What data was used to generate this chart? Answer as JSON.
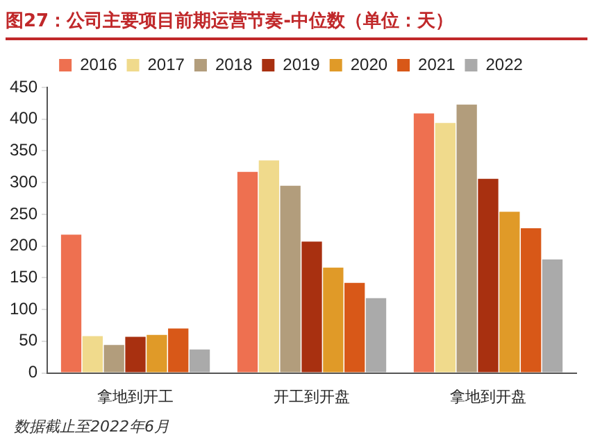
{
  "chart_data": {
    "type": "bar",
    "title": "图27：公司主要项目前期运营节奏-中位数（单位：天）",
    "categories": [
      "拿地到开工",
      "开工到开盘",
      "拿地到开盘"
    ],
    "series": [
      {
        "name": "2016",
        "color": "#ee7050",
        "values": [
          218,
          317,
          409
        ]
      },
      {
        "name": "2017",
        "color": "#f0da8c",
        "values": [
          58,
          335,
          394
        ]
      },
      {
        "name": "2018",
        "color": "#b29d7c",
        "values": [
          44,
          295,
          423
        ]
      },
      {
        "name": "2019",
        "color": "#a83010",
        "values": [
          57,
          207,
          306
        ]
      },
      {
        "name": "2020",
        "color": "#e09a28",
        "values": [
          60,
          166,
          254
        ]
      },
      {
        "name": "2021",
        "color": "#d85818",
        "values": [
          70,
          142,
          228
        ]
      },
      {
        "name": "2022",
        "color": "#aaaaaa",
        "values": [
          37,
          118,
          179
        ]
      }
    ],
    "ylim": [
      0,
      450
    ],
    "yticks": [
      0,
      50,
      100,
      150,
      200,
      250,
      300,
      350,
      400,
      450
    ],
    "grid": false,
    "legend": "top",
    "annotations": [
      "数据截止至2022年6月"
    ]
  }
}
